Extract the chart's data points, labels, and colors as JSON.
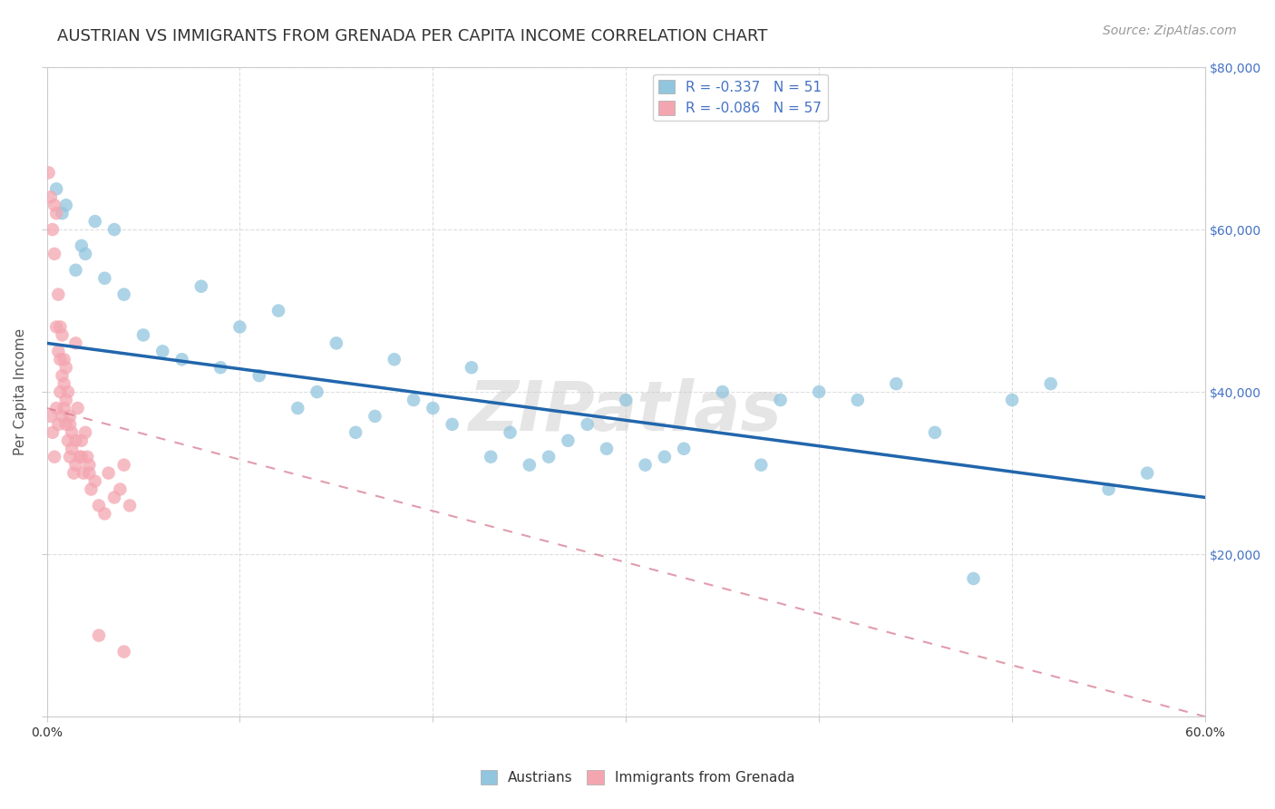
{
  "title": "AUSTRIAN VS IMMIGRANTS FROM GRENADA PER CAPITA INCOME CORRELATION CHART",
  "source": "Source: ZipAtlas.com",
  "ylabel": "Per Capita Income",
  "xlabel": "",
  "watermark": "ZIPatlas",
  "xlim": [
    0.0,
    0.6
  ],
  "ylim": [
    0,
    80000
  ],
  "yticks": [
    0,
    20000,
    40000,
    60000,
    80000
  ],
  "ytick_labels": [
    "",
    "$20,000",
    "$40,000",
    "$60,000",
    "$80,000"
  ],
  "xticks": [
    0.0,
    0.1,
    0.2,
    0.3,
    0.4,
    0.5,
    0.6
  ],
  "xtick_labels_show": [
    "0.0%",
    "",
    "",
    "",
    "",
    "",
    "60.0%"
  ],
  "blue_color": "#92c5de",
  "pink_color": "#f4a6b0",
  "blue_line_color": "#2166ac",
  "pink_line_color": "#d6728a",
  "legend_blue_label": "R = -0.337   N = 51",
  "legend_pink_label": "R = -0.086   N = 57",
  "austrians_label": "Austrians",
  "grenada_label": "Immigrants from Grenada",
  "blue_line_x0": 0.0,
  "blue_line_y0": 46000,
  "blue_line_x1": 0.6,
  "blue_line_y1": 27000,
  "pink_line_x0": 0.0,
  "pink_line_y0": 38000,
  "pink_line_x1": 0.6,
  "pink_line_y1": 0,
  "blue_scatter_x": [
    0.005,
    0.008,
    0.01,
    0.015,
    0.018,
    0.02,
    0.025,
    0.03,
    0.035,
    0.04,
    0.05,
    0.06,
    0.07,
    0.08,
    0.09,
    0.1,
    0.11,
    0.12,
    0.13,
    0.14,
    0.15,
    0.16,
    0.17,
    0.18,
    0.19,
    0.2,
    0.21,
    0.22,
    0.23,
    0.24,
    0.25,
    0.26,
    0.27,
    0.28,
    0.29,
    0.3,
    0.31,
    0.32,
    0.33,
    0.35,
    0.37,
    0.38,
    0.4,
    0.42,
    0.44,
    0.46,
    0.48,
    0.5,
    0.52,
    0.55,
    0.57
  ],
  "blue_scatter_y": [
    65000,
    62000,
    63000,
    55000,
    58000,
    57000,
    61000,
    54000,
    60000,
    52000,
    47000,
    45000,
    44000,
    53000,
    43000,
    48000,
    42000,
    50000,
    38000,
    40000,
    46000,
    35000,
    37000,
    44000,
    39000,
    38000,
    36000,
    43000,
    32000,
    35000,
    31000,
    32000,
    34000,
    36000,
    33000,
    39000,
    31000,
    32000,
    33000,
    40000,
    31000,
    39000,
    40000,
    39000,
    41000,
    35000,
    17000,
    39000,
    41000,
    28000,
    30000
  ],
  "pink_scatter_x": [
    0.001,
    0.002,
    0.003,
    0.004,
    0.004,
    0.005,
    0.005,
    0.006,
    0.006,
    0.007,
    0.007,
    0.008,
    0.008,
    0.009,
    0.009,
    0.01,
    0.01,
    0.011,
    0.011,
    0.012,
    0.012,
    0.013,
    0.013,
    0.014,
    0.015,
    0.015,
    0.016,
    0.017,
    0.018,
    0.019,
    0.02,
    0.021,
    0.022,
    0.023,
    0.025,
    0.027,
    0.03,
    0.032,
    0.035,
    0.038,
    0.04,
    0.043,
    0.002,
    0.003,
    0.004,
    0.005,
    0.006,
    0.007,
    0.008,
    0.009,
    0.01,
    0.012,
    0.015,
    0.018,
    0.022,
    0.027,
    0.04
  ],
  "pink_scatter_y": [
    67000,
    64000,
    60000,
    63000,
    57000,
    62000,
    48000,
    52000,
    45000,
    48000,
    44000,
    47000,
    42000,
    44000,
    38000,
    43000,
    36000,
    40000,
    34000,
    37000,
    32000,
    35000,
    33000,
    30000,
    31000,
    46000,
    38000,
    32000,
    34000,
    30000,
    35000,
    32000,
    31000,
    28000,
    29000,
    26000,
    25000,
    30000,
    27000,
    28000,
    31000,
    26000,
    37000,
    35000,
    32000,
    38000,
    36000,
    40000,
    37000,
    41000,
    39000,
    36000,
    34000,
    32000,
    30000,
    10000,
    8000
  ],
  "grid_color": "#dddddd",
  "background_color": "#ffffff",
  "title_fontsize": 13,
  "axis_label_fontsize": 11,
  "tick_fontsize": 10,
  "legend_fontsize": 11,
  "source_fontsize": 10
}
